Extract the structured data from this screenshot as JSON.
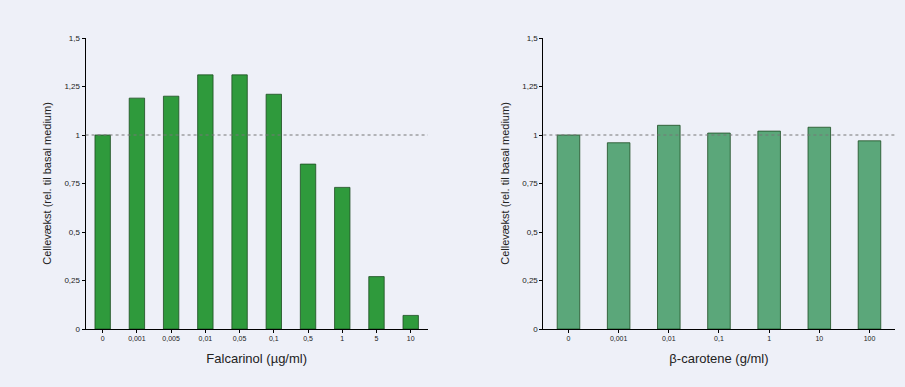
{
  "chart_data": [
    {
      "type": "bar",
      "x_label": "Falcarinol (µg/ml)",
      "y_label": "Cellevækst (rel. til basal medium)",
      "categories": [
        "0",
        "0,001",
        "0,005",
        "0,01",
        "0,05",
        "0,1",
        "0,5",
        "1",
        "5",
        "10"
      ],
      "values": [
        1,
        1.19,
        1.2,
        1.31,
        1.31,
        1.21,
        0.85,
        0.73,
        0.27,
        0.07
      ],
      "color": "#2f9a3c",
      "ylim": [
        0,
        1.5
      ],
      "yticks": [
        0,
        {
          "value": 0.25,
          "label": "0,25"
        },
        {
          "value": 0.5,
          "label": "0,5"
        },
        {
          "value": 0.75,
          "label": "0,75"
        },
        1,
        {
          "value": 1.25,
          "label": "1,25"
        },
        {
          "value": 1.5,
          "label": "1,5"
        }
      ],
      "grid": false,
      "reference_line": 1
    },
    {
      "type": "bar",
      "x_label": "β-carotene (g/ml)",
      "y_label": "Cellevækst (rel. til basal medium)",
      "categories": [
        "0",
        "0,001",
        "0,01",
        "0,1",
        "1",
        "10",
        "100"
      ],
      "values": [
        1,
        0.96,
        1.05,
        1.01,
        1.02,
        1.04,
        0.97
      ],
      "color": "#5ba77a",
      "ylim": [
        0,
        1.5
      ],
      "yticks": [
        0,
        {
          "value": 0.25,
          "label": "0,25"
        },
        {
          "value": 0.5,
          "label": "0,5"
        },
        {
          "value": 0.75,
          "label": "0,75"
        },
        1,
        {
          "value": 1.25,
          "label": "1,25"
        },
        {
          "value": 1.5,
          "label": "1,5"
        }
      ],
      "grid": false,
      "reference_line": 1
    }
  ]
}
